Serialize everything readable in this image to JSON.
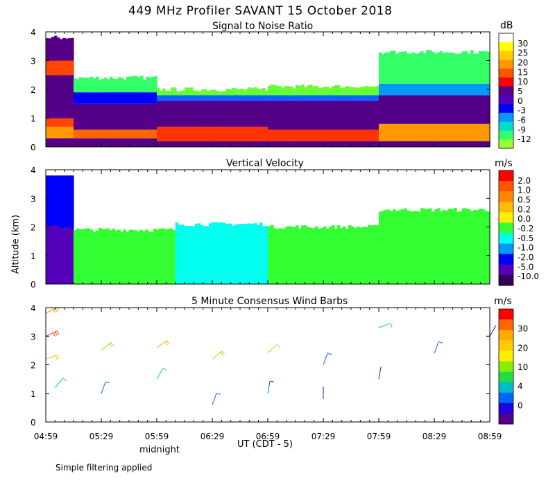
{
  "figure": {
    "title": "449 MHz Profiler SAVANT 15 October 2018",
    "y_axis_label": "Altitude (km)",
    "x_axis_label": "UT  (CDT - 5)",
    "x_tick_labels": [
      "04:59",
      "05:29",
      "05:59",
      "06:29",
      "06:59",
      "07:29",
      "07:59",
      "08:29",
      "08:59"
    ],
    "sub_label": "midnight",
    "footnote": "Simple filtering applied"
  },
  "chart_data": [
    {
      "type": "heatmap",
      "title": "Signal to Noise Ratio",
      "unit": "dB",
      "ylim": [
        0,
        4
      ],
      "y_ticks": [
        "0",
        "1",
        "2",
        "3",
        "4"
      ],
      "x_range": [
        "04:59",
        "08:59"
      ],
      "colorbar_labels": [
        "30",
        "25",
        "20",
        "15",
        "10",
        "5",
        "0",
        "-3",
        "-6",
        "-9",
        "-12"
      ],
      "colorbar_colors": [
        "#ffffff",
        "#ffff00",
        "#ffcc00",
        "#ff9900",
        "#ff5500",
        "#ff0000",
        "#550088",
        "#5500bb",
        "#0000ff",
        "#0099ff",
        "#00ddcc",
        "#33ff66",
        "#99ff33"
      ],
      "profiles": [
        {
          "time": "04:59",
          "top_km": 3.8,
          "layers": [
            [
              0.0,
              0.3,
              "#550088"
            ],
            [
              0.3,
              0.7,
              "#ff9900"
            ],
            [
              0.7,
              1.0,
              "#ff4400"
            ],
            [
              1.0,
              2.5,
              "#550088"
            ],
            [
              2.5,
              3.0,
              "#ff4400"
            ],
            [
              3.0,
              3.8,
              "#550088"
            ]
          ]
        },
        {
          "time": "05:14",
          "top_km": 2.4,
          "layers": [
            [
              0.0,
              0.3,
              "#550088"
            ],
            [
              0.3,
              0.6,
              "#ff6600"
            ],
            [
              0.6,
              1.5,
              "#550088"
            ],
            [
              1.5,
              1.9,
              "#0000ff"
            ],
            [
              1.9,
              2.4,
              "#33ff66"
            ]
          ]
        },
        {
          "time": "05:59",
          "top_km": 2.0,
          "layers": [
            [
              0.0,
              0.2,
              "#550088"
            ],
            [
              0.2,
              0.7,
              "#ff3300"
            ],
            [
              0.7,
              1.6,
              "#550088"
            ],
            [
              1.6,
              1.8,
              "#0066ff"
            ],
            [
              1.8,
              2.0,
              "#66ff33"
            ]
          ]
        },
        {
          "time": "06:59",
          "top_km": 2.1,
          "layers": [
            [
              0.0,
              0.2,
              "#550088"
            ],
            [
              0.2,
              0.6,
              "#ff3300"
            ],
            [
              0.6,
              1.6,
              "#550088"
            ],
            [
              1.6,
              1.8,
              "#0066ff"
            ],
            [
              1.8,
              2.1,
              "#66ff33"
            ]
          ]
        },
        {
          "time": "07:59",
          "top_km": 3.3,
          "layers": [
            [
              0.0,
              0.2,
              "#550088"
            ],
            [
              0.2,
              0.8,
              "#ff9900"
            ],
            [
              0.8,
              1.8,
              "#550088"
            ],
            [
              1.8,
              2.2,
              "#0099ff"
            ],
            [
              2.2,
              3.3,
              "#33ff66"
            ]
          ]
        },
        {
          "time": "08:59",
          "top_km": 3.1,
          "layers": [
            [
              0.0,
              0.2,
              "#550088"
            ],
            [
              0.2,
              0.8,
              "#ff6600"
            ],
            [
              0.8,
              1.9,
              "#550088"
            ],
            [
              1.9,
              2.3,
              "#0099ff"
            ],
            [
              2.3,
              3.1,
              "#66ff33"
            ]
          ]
        }
      ]
    },
    {
      "type": "heatmap",
      "title": "Vertical Velocity",
      "unit": "m/s",
      "ylim": [
        0,
        4
      ],
      "y_ticks": [
        "0",
        "1",
        "2",
        "3",
        "4"
      ],
      "x_range": [
        "04:59",
        "08:59"
      ],
      "colorbar_labels": [
        "2.0",
        "1.0",
        "0.5",
        "0.2",
        "0.0",
        "-0.2",
        "-0.5",
        "-1.0",
        "-2.0",
        "-5.0",
        "-10.0"
      ],
      "colorbar_colors": [
        "#ff0000",
        "#ff5500",
        "#ff8800",
        "#ffbb00",
        "#ffee00",
        "#33ff33",
        "#00ffee",
        "#0099ff",
        "#0000ff",
        "#5500bb",
        "#330055"
      ],
      "profiles": [
        {
          "time": "04:59",
          "top_km": 3.8,
          "layers": [
            [
              0.0,
              3.8,
              "#0000ff"
            ],
            [
              0.0,
              2.0,
              "#5500bb"
            ]
          ]
        },
        {
          "time": "05:14",
          "top_km": 1.9,
          "layers": [
            [
              0.0,
              1.9,
              "#33ff33"
            ]
          ]
        },
        {
          "time": "06:09",
          "top_km": 2.1,
          "layers": [
            [
              0.0,
              2.1,
              "#00ffee"
            ]
          ]
        },
        {
          "time": "06:59",
          "top_km": 2.0,
          "layers": [
            [
              0.0,
              2.0,
              "#33ff33"
            ]
          ]
        },
        {
          "time": "07:59",
          "top_km": 2.6,
          "layers": [
            [
              0.0,
              2.6,
              "#33ff33"
            ]
          ]
        },
        {
          "time": "08:59",
          "top_km": 2.6,
          "layers": [
            [
              0.0,
              2.6,
              "#33ff33"
            ]
          ]
        }
      ]
    },
    {
      "type": "scatter",
      "title": "5 Minute Consensus Wind Barbs",
      "unit": "m/s",
      "ylim": [
        0,
        4
      ],
      "y_ticks": [
        "0",
        "1",
        "2",
        "3",
        "4"
      ],
      "x_range": [
        "04:59",
        "08:59"
      ],
      "colorbar_labels": [
        "30",
        "20",
        "10",
        "4",
        "0"
      ],
      "colorbar_colors": [
        "#ff0000",
        "#ff6600",
        "#ffaa00",
        "#ffcc00",
        "#ffee00",
        "#88ee00",
        "#22dd44",
        "#00bbcc",
        "#0066ff",
        "#2200dd",
        "#550088"
      ],
      "wind_barbs": [
        {
          "time": "04:59",
          "alt_km": 3.8,
          "speed": 25,
          "dir": 240
        },
        {
          "time": "04:59",
          "alt_km": 3.0,
          "speed": 28,
          "dir": 245
        },
        {
          "time": "04:59",
          "alt_km": 2.2,
          "speed": 18,
          "dir": 250
        },
        {
          "time": "05:04",
          "alt_km": 1.2,
          "speed": 8,
          "dir": 220
        },
        {
          "time": "05:29",
          "alt_km": 2.5,
          "speed": 14,
          "dir": 230
        },
        {
          "time": "05:29",
          "alt_km": 1.0,
          "speed": 6,
          "dir": 200
        },
        {
          "time": "05:59",
          "alt_km": 2.6,
          "speed": 16,
          "dir": 235
        },
        {
          "time": "05:59",
          "alt_km": 1.5,
          "speed": 8,
          "dir": 210
        },
        {
          "time": "06:29",
          "alt_km": 2.2,
          "speed": 12,
          "dir": 230
        },
        {
          "time": "06:29",
          "alt_km": 0.6,
          "speed": 5,
          "dir": 200
        },
        {
          "time": "06:59",
          "alt_km": 2.4,
          "speed": 10,
          "dir": 225
        },
        {
          "time": "06:59",
          "alt_km": 1.0,
          "speed": 4,
          "dir": 190
        },
        {
          "time": "07:29",
          "alt_km": 2.0,
          "speed": 6,
          "dir": 200
        },
        {
          "time": "07:29",
          "alt_km": 0.8,
          "speed": 3,
          "dir": 180
        },
        {
          "time": "07:59",
          "alt_km": 3.3,
          "speed": 8,
          "dir": 250
        },
        {
          "time": "07:59",
          "alt_km": 1.5,
          "speed": 3,
          "dir": 190
        },
        {
          "time": "08:29",
          "alt_km": 2.4,
          "speed": 4,
          "dir": 200
        },
        {
          "time": "08:59",
          "alt_km": 3.0,
          "speed": 3,
          "dir": 210
        }
      ]
    }
  ]
}
